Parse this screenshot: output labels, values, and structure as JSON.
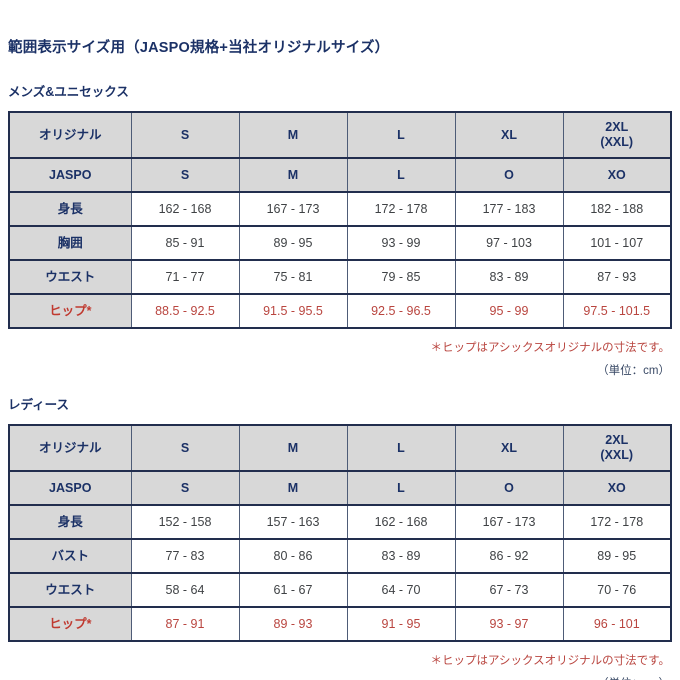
{
  "page": {
    "title": "範囲表示サイズ用（JASPO規格+当社オリジナルサイズ）"
  },
  "colors": {
    "navy_text": "#1b3166",
    "red_text": "#b9453f",
    "header_bg": "#d8d8d8",
    "border_dark": "#222e4e",
    "border_light": "#4e5c77",
    "value_text": "#3f4245"
  },
  "sections": [
    {
      "id": "mens",
      "heading": "メンズ&ユニセックス",
      "header_rows": [
        {
          "label": "オリジナル",
          "values": [
            "S",
            "M",
            "L",
            "XL",
            "2XL\n(XXL)"
          ]
        },
        {
          "label": "JASPO",
          "values": [
            "S",
            "M",
            "L",
            "O",
            "XO"
          ]
        }
      ],
      "data_rows": [
        {
          "label": "身長",
          "highlight": false,
          "values": [
            "162 - 168",
            "167 - 173",
            "172 - 178",
            "177 - 183",
            "182 - 188"
          ]
        },
        {
          "label": "胸囲",
          "highlight": false,
          "values": [
            "85 - 91",
            "89 - 95",
            "93 - 99",
            "97 - 103",
            "101 - 107"
          ]
        },
        {
          "label": "ウエスト",
          "highlight": false,
          "values": [
            "71 - 77",
            "75 - 81",
            "79 - 85",
            "83 - 89",
            "87 - 93"
          ]
        },
        {
          "label": "ヒップ*",
          "highlight": true,
          "values": [
            "88.5 - 92.5",
            "91.5 - 95.5",
            "92.5 - 96.5",
            "95 - 99",
            "97.5 - 101.5"
          ]
        }
      ],
      "footnote": "＊ヒップはアシックスオリジナルの寸法です。",
      "unit_note": "（単位：cm）"
    },
    {
      "id": "ladies",
      "heading": "レディース",
      "header_rows": [
        {
          "label": "オリジナル",
          "values": [
            "S",
            "M",
            "L",
            "XL",
            "2XL\n(XXL)"
          ]
        },
        {
          "label": "JASPO",
          "values": [
            "S",
            "M",
            "L",
            "O",
            "XO"
          ]
        }
      ],
      "data_rows": [
        {
          "label": "身長",
          "highlight": false,
          "values": [
            "152 - 158",
            "157 - 163",
            "162 - 168",
            "167 - 173",
            "172 - 178"
          ]
        },
        {
          "label": "バスト",
          "highlight": false,
          "values": [
            "77 - 83",
            "80 - 86",
            "83 - 89",
            "86 - 92",
            "89 - 95"
          ]
        },
        {
          "label": "ウエスト",
          "highlight": false,
          "values": [
            "58 - 64",
            "61 - 67",
            "64 - 70",
            "67 - 73",
            "70 - 76"
          ]
        },
        {
          "label": "ヒップ*",
          "highlight": true,
          "values": [
            "87 - 91",
            "89 - 93",
            "91 - 95",
            "93 - 97",
            "96 - 101"
          ]
        }
      ],
      "footnote": "＊ヒップはアシックスオリジナルの寸法です。",
      "unit_note": "（単位：cm）"
    }
  ]
}
